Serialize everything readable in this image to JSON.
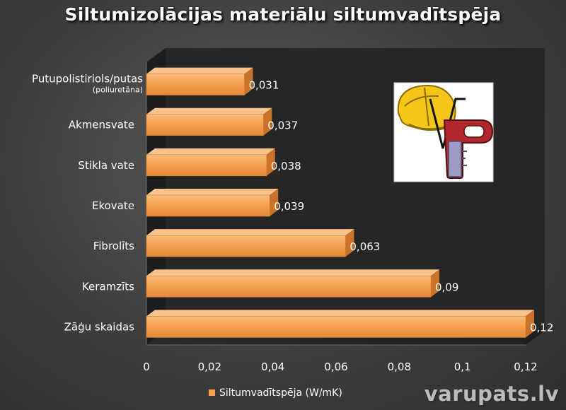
{
  "chart_data": {
    "type": "bar",
    "orientation": "horizontal",
    "title": "Siltumizolācijas materiālu siltumvadītspēja",
    "categories": [
      "Putupolistiriols/putas (poliuretāna)",
      "Akmensvate",
      "Stikla vate",
      "Ekovate",
      "Fibrolīts",
      "Keramzīts",
      "Zāģu skaidas"
    ],
    "category_lines": [
      [
        "Putupolistiriols/putas",
        "(poliuretāna)"
      ],
      [
        "Akmensvate"
      ],
      [
        "Stikla vate"
      ],
      [
        "Ekovate"
      ],
      [
        "Fibrolīts"
      ],
      [
        "Keramzīts"
      ],
      [
        "Zāģu skaidas"
      ]
    ],
    "series": [
      {
        "name": "Siltumvadītspēja (W/mK)",
        "values": [
          0.031,
          0.037,
          0.038,
          0.039,
          0.063,
          0.09,
          0.12
        ],
        "value_labels": [
          "0,031",
          "0,037",
          "0,038",
          "0,039",
          "0,063",
          "0,09",
          "0,12"
        ]
      }
    ],
    "x_ticks": [
      0,
      0.02,
      0.04,
      0.06,
      0.08,
      0.1,
      0.12
    ],
    "x_tick_labels": [
      "0",
      "0,02",
      "0,04",
      "0,06",
      "0,08",
      "0,1",
      "0,12"
    ],
    "xlim": [
      0,
      0.12
    ],
    "legend": "bottom",
    "grid": false,
    "bar_color": "#f4a252",
    "plot_background": "#262626"
  },
  "watermark": "varupats.lv",
  "logo": {
    "icon": "helmet-key-logo",
    "letters": "VP"
  }
}
